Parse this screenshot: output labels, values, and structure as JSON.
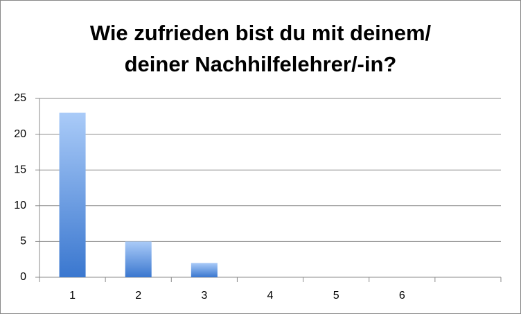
{
  "chart_data": {
    "type": "bar",
    "title": [
      "Wie zufrieden bist du mit deinem/",
      "deiner Nachhilfelehrer/-in?"
    ],
    "categories": [
      "1",
      "2",
      "3",
      "4",
      "5",
      "6",
      null
    ],
    "values": [
      23,
      5,
      2,
      0,
      0,
      0,
      null
    ],
    "color": [
      "#aacbf8",
      "#3a77cf"
    ],
    "ylim": [
      0,
      25
    ],
    "yticks": [
      0,
      5,
      10,
      15,
      20,
      25
    ],
    "grid": true
  }
}
